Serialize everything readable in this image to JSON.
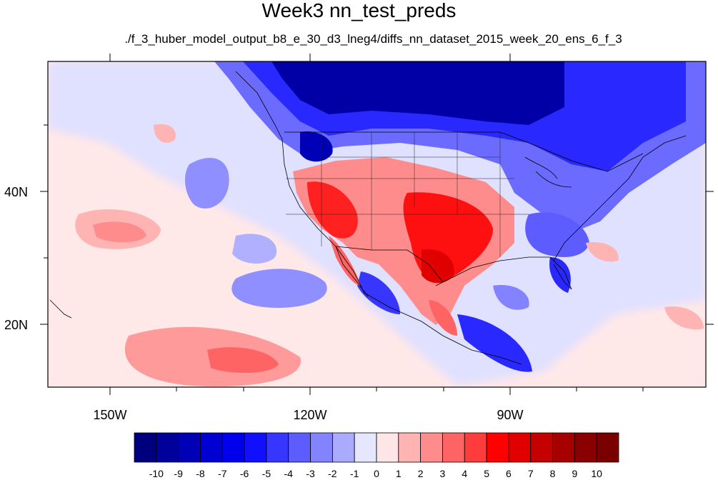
{
  "title": "Week3 nn_test_preds",
  "subtitle": "./f_3_huber_model_output_b8_e_30_d3_lneg4/diffs_nn_dataset_2015_week_20_ens_6_f_3",
  "lat_labels": [
    "40N",
    "20N"
  ],
  "lon_labels": [
    "150W",
    "120W",
    "90W"
  ],
  "colorbar": {
    "tick_labels": [
      "-10",
      "-9",
      "-8",
      "-7",
      "-6",
      "-5",
      "-4",
      "-3",
      "-2",
      "-1",
      "0",
      "1",
      "2",
      "3",
      "4",
      "5",
      "6",
      "7",
      "8",
      "9",
      "10"
    ],
    "colors": [
      "#00007f",
      "#00009b",
      "#0000b6",
      "#0000d2",
      "#0000ed",
      "#1010ff",
      "#3636ff",
      "#5d5dff",
      "#8383ff",
      "#aaaaff",
      "#e6e6ff",
      "#ffe6e6",
      "#ffb4b4",
      "#ff8c8c",
      "#ff6464",
      "#ff3c3c",
      "#ff0000",
      "#e10000",
      "#c40000",
      "#a70000",
      "#8a0000",
      "#7a0000"
    ]
  },
  "regions": {
    "cold_canada": "#0000a6",
    "cold_east": "#2828ff",
    "warm_southwest": "#ff2020",
    "warm_texas": "#ff1010",
    "ocean_neutral_warm": "#ffe8e8",
    "ocean_neutral_cool": "#e0e0ff",
    "pacific_warm_band": "#ff9a9a",
    "pacific_cool_patch": "#8f8fff"
  }
}
